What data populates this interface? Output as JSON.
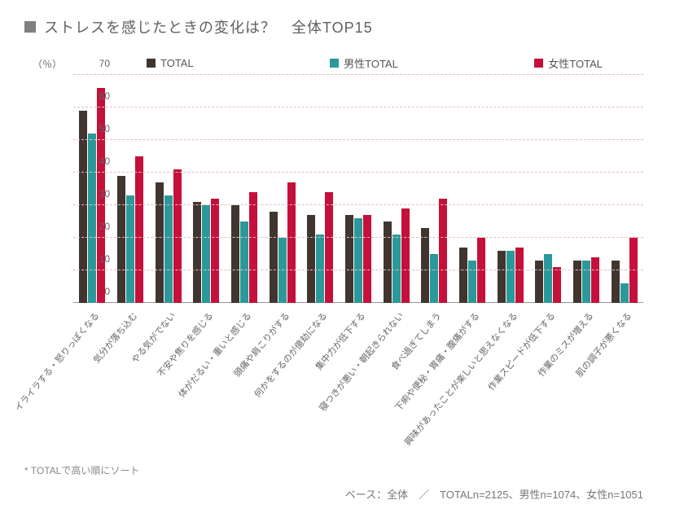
{
  "title": "ストレスを感じたときの変化は？　全体TOP15",
  "y_unit": "（％）",
  "chart": {
    "type": "bar",
    "ylim": [
      0,
      70
    ],
    "ytick_step": 10,
    "grid_color": "#e0c0c0",
    "background_color": "#ffffff",
    "series": [
      {
        "name": "TOTAL",
        "label": "TOTAL",
        "color": "#413530"
      },
      {
        "name": "male",
        "label": "男性TOTAL",
        "color": "#2b9999"
      },
      {
        "name": "female",
        "label": "女性TOTAL",
        "color": "#c4103a"
      }
    ],
    "categories": [
      "イライラする・怒りっぽくなる",
      "気分が落ち込む",
      "やる気がでない",
      "不安や焦りを感じる",
      "体がだるい・重いと感じる",
      "頭痛や肩こりがする",
      "何かをするのが億劫になる",
      "集中力が低下する",
      "寝つきが悪い・朝起きられない",
      "食べ過ぎてしまう",
      "下痢や便秘・胃痛・腹痛がする",
      "興味があったことが楽しいと思えなくなる",
      "作業スピードが低下する",
      "作業のミスが増える",
      "肌の調子が悪くなる"
    ],
    "values": {
      "TOTAL": [
        59,
        39,
        37,
        31,
        30,
        28,
        27,
        27,
        25,
        23,
        17,
        16,
        13,
        13,
        13
      ],
      "male": [
        52,
        33,
        33,
        30,
        25,
        20,
        21,
        26,
        21,
        15,
        13,
        16,
        15,
        13,
        6
      ],
      "female": [
        66,
        45,
        41,
        32,
        34,
        37,
        34,
        27,
        29,
        32,
        20,
        17,
        11,
        14,
        20
      ]
    }
  },
  "footnote_left": "* TOTALで高い順にソート",
  "footnote_right": "ベース：全体　／　TOTALn=2125、男性n=1074、女性n=1051"
}
